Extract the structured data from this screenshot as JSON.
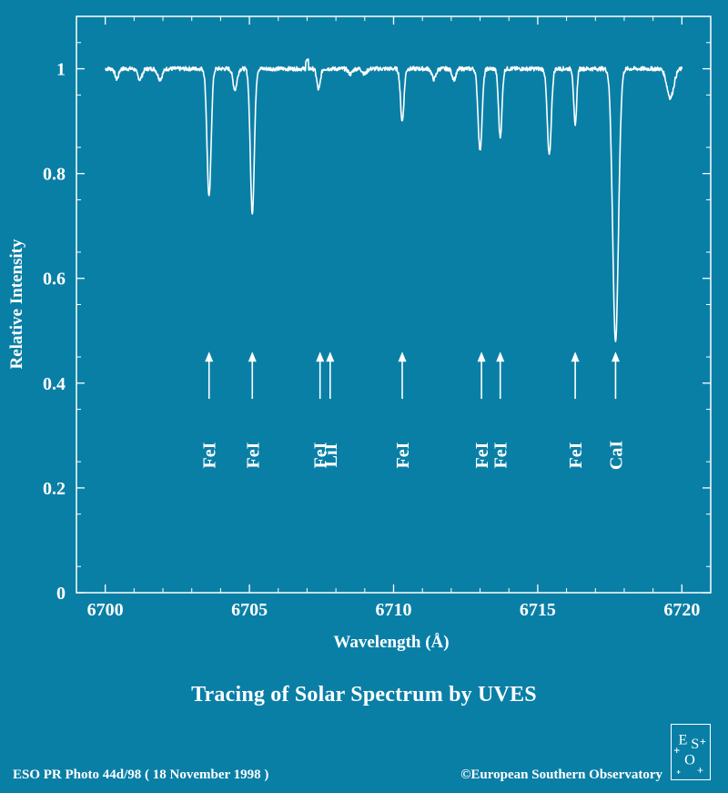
{
  "chart_data": {
    "type": "line",
    "title": "",
    "xlabel": "Wavelength  (Å)",
    "ylabel": "Relative Intensity",
    "xlim": [
      6699,
      6721
    ],
    "ylim": [
      0,
      1.1
    ],
    "xticks": [
      6700,
      6705,
      6710,
      6715,
      6720
    ],
    "xtick_labels": [
      "6700",
      "6705",
      "6710",
      "6715",
      "6720"
    ],
    "yticks": [
      0,
      0.2,
      0.4,
      0.6,
      0.8,
      1
    ],
    "ytick_labels": [
      "0",
      "0.2",
      "0.4",
      "0.6",
      "0.8",
      "1"
    ],
    "grid": false,
    "series": [
      {
        "continuum": 1.0,
        "x_range": [
          6700,
          6720
        ],
        "lines": [
          {
            "x": 6700.4,
            "depth": 0.02,
            "width": 0.06
          },
          {
            "x": 6701.2,
            "depth": 0.02,
            "width": 0.08
          },
          {
            "x": 6701.9,
            "depth": 0.02,
            "width": 0.08
          },
          {
            "x": 6703.6,
            "depth": 0.245,
            "width": 0.07
          },
          {
            "x": 6704.5,
            "depth": 0.04,
            "width": 0.07
          },
          {
            "x": 6705.1,
            "depth": 0.275,
            "width": 0.07
          },
          {
            "x": 6707.4,
            "depth": 0.04,
            "width": 0.06
          },
          {
            "x": 6708.5,
            "depth": 0.01,
            "width": 0.07
          },
          {
            "x": 6709.0,
            "depth": 0.01,
            "width": 0.07
          },
          {
            "x": 6710.3,
            "depth": 0.1,
            "width": 0.06
          },
          {
            "x": 6711.4,
            "depth": 0.02,
            "width": 0.07
          },
          {
            "x": 6712.1,
            "depth": 0.02,
            "width": 0.07
          },
          {
            "x": 6713.0,
            "depth": 0.155,
            "width": 0.07
          },
          {
            "x": 6713.7,
            "depth": 0.13,
            "width": 0.06
          },
          {
            "x": 6715.4,
            "depth": 0.165,
            "width": 0.07
          },
          {
            "x": 6716.3,
            "depth": 0.11,
            "width": 0.05
          },
          {
            "x": 6717.7,
            "depth": 0.52,
            "width": 0.1
          },
          {
            "x": 6719.6,
            "depth": 0.055,
            "width": 0.12
          }
        ]
      }
    ],
    "annotations": [
      {
        "label": "FeI",
        "x": 6703.6
      },
      {
        "label": "FeI",
        "x": 6705.1
      },
      {
        "label": "FeI",
        "x": 6707.45
      },
      {
        "label": "LiI",
        "x": 6707.8
      },
      {
        "label": "FeI",
        "x": 6710.3
      },
      {
        "label": "FeI",
        "x": 6713.05
      },
      {
        "label": "FeI",
        "x": 6713.7
      },
      {
        "label": "FeI",
        "x": 6716.3
      },
      {
        "label": "CaI",
        "x": 6717.7
      }
    ],
    "arrow_y_range": [
      0.37,
      0.46
    ]
  },
  "caption": "Tracing of Solar Spectrum by UVES",
  "footer": {
    "photo_id": "ESO PR Photo 44d/98 ( 18 November 1998 )",
    "copyright": "©European Southern Observatory"
  },
  "logo": {
    "text": "ESO"
  },
  "colors": {
    "background": "#0a7fa6",
    "foreground": "#ffffff"
  }
}
